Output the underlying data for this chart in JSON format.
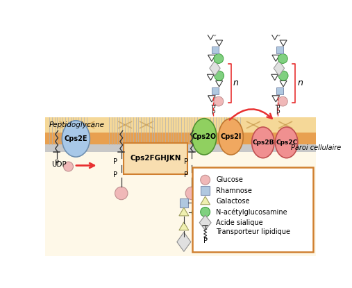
{
  "fig_width": 5.07,
  "fig_height": 4.15,
  "dpi": 100,
  "colors": {
    "glucose": "#f0b8b8",
    "rhamnose": "#b0c8e0",
    "galactose_fc": "#f0f0b0",
    "galactose_ec": "#a0a060",
    "nacetyl": "#80d080",
    "sialic_fc": "#e0e0e0",
    "sialic_ec": "#909090",
    "membrane_orange": "#e8a050",
    "peptidoglycan_fc": "#f5d898",
    "gray_wall": "#c8c8c8",
    "cytoplasm": "#fef8e8",
    "cps2e_fc": "#a8c8e8",
    "cps2e_ec": "#7090b0",
    "cps2o_fc": "#90d060",
    "cps2o_ec": "#509030",
    "cps2i_fc": "#f0a860",
    "cps2i_ec": "#c07830",
    "cps2bc_fc": "#f09090",
    "cps2bc_ec": "#c05050",
    "fghjkn_fc": "#f8deb0",
    "fghjkn_ec": "#d08030",
    "red": "#e83030",
    "dark": "#383838",
    "legend_ec": "#d08030"
  },
  "labels": {
    "peptidoglycan": "Peptidoglycane",
    "paroi": "Paroi cellulaire",
    "cps2e": "Cps2E",
    "cps2o": "Cps2O",
    "cps2i": "Cps2I",
    "cps2b": "Cps2B",
    "cps2c": "Cps2C",
    "fghjkn": "Cps2FGHJKN",
    "udp": "UDP",
    "p": "P",
    "n": "n",
    "glucose_leg": "Glucose",
    "rhamnose_leg": "Rhamnose",
    "galactose_leg": "Galactose",
    "nacetyl_leg": "N-acétylglucosamine",
    "sialic_leg": "Acide sialique",
    "transporter_leg": "Transporteur lipidique"
  }
}
